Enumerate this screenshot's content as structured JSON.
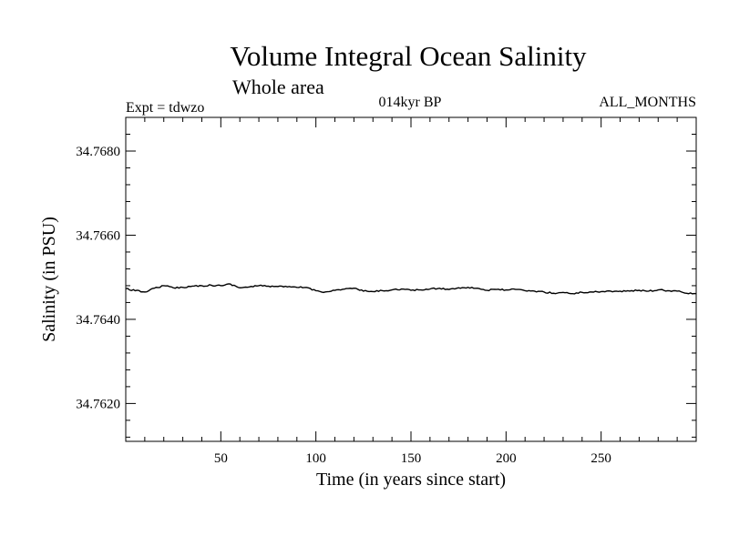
{
  "chart_data": {
    "type": "line",
    "title": "Volume Integral Ocean Salinity",
    "subtitle": "Whole area",
    "annotations": {
      "left": "Expt = tdwzo",
      "center": "014kyr BP",
      "right": "ALL_MONTHS"
    },
    "xlabel": "Time (in years since start)",
    "ylabel": "Salinity (in PSU)",
    "xlim": [
      0,
      300
    ],
    "ylim": [
      34.7611,
      34.7688
    ],
    "xticks": [
      50,
      100,
      150,
      200,
      250
    ],
    "xtick_labels": [
      "50",
      "100",
      "150",
      "200",
      "250"
    ],
    "yticks": [
      34.762,
      34.764,
      34.766,
      34.768
    ],
    "ytick_labels": [
      "34.7620",
      "34.7640",
      "34.7660",
      "34.7680"
    ],
    "grid": false,
    "legend": "none",
    "line_color": "#000000",
    "series": [
      {
        "x": [
          0,
          5,
          10,
          15,
          20,
          25,
          30,
          35,
          40,
          45,
          50,
          55,
          60,
          65,
          70,
          75,
          80,
          85,
          90,
          95,
          100,
          105,
          110,
          115,
          120,
          125,
          130,
          135,
          140,
          145,
          150,
          155,
          160,
          165,
          170,
          175,
          180,
          185,
          190,
          195,
          200,
          205,
          210,
          215,
          220,
          225,
          230,
          235,
          240,
          245,
          250,
          255,
          260,
          265,
          270,
          275,
          280,
          285,
          290,
          295,
          300
        ],
        "y": [
          34.76473,
          34.76468,
          34.76465,
          34.76474,
          34.7648,
          34.76475,
          34.76476,
          34.76479,
          34.7648,
          34.76481,
          34.7648,
          34.76484,
          34.76475,
          34.76477,
          34.7648,
          34.76479,
          34.76478,
          34.76477,
          34.76476,
          34.76476,
          34.76468,
          34.76465,
          34.76469,
          34.76472,
          34.76474,
          34.76467,
          34.76466,
          34.76468,
          34.7647,
          34.76472,
          34.76469,
          34.7647,
          34.76472,
          34.76474,
          34.76471,
          34.76475,
          34.76476,
          34.76474,
          34.76469,
          34.76471,
          34.7647,
          34.76471,
          34.76468,
          34.76467,
          34.76465,
          34.76462,
          34.76464,
          34.76461,
          34.76464,
          34.76465,
          34.76466,
          34.76467,
          34.76467,
          34.76467,
          34.76469,
          34.76467,
          34.7647,
          34.76468,
          34.76467,
          34.76462,
          34.76461
        ]
      }
    ]
  }
}
